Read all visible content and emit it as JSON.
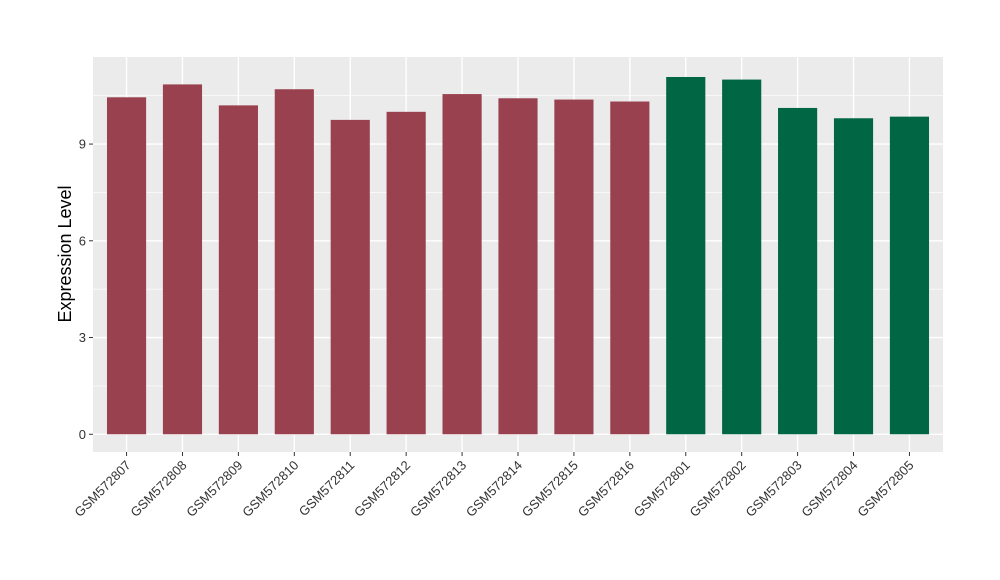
{
  "chart_data": {
    "type": "bar",
    "title": "",
    "xlabel": "",
    "ylabel": "Expression Level",
    "ylim": [
      -0.55,
      11.7
    ],
    "yticks": [
      0,
      3,
      6,
      9
    ],
    "grid": true,
    "legend": "none",
    "categories": [
      "GSM572807",
      "GSM572808",
      "GSM572809",
      "GSM572810",
      "GSM572811",
      "GSM572812",
      "GSM572813",
      "GSM572814",
      "GSM572815",
      "GSM572816",
      "GSM572801",
      "GSM572802",
      "GSM572803",
      "GSM572804",
      "GSM572805"
    ],
    "values": [
      10.45,
      10.85,
      10.2,
      10.7,
      9.75,
      10.0,
      10.55,
      10.42,
      10.38,
      10.32,
      11.08,
      11.0,
      10.12,
      9.8,
      9.85
    ],
    "groups": [
      0,
      0,
      0,
      0,
      0,
      0,
      0,
      0,
      0,
      0,
      1,
      1,
      1,
      1,
      1
    ],
    "colors": {
      "group_0": "#99414f",
      "group_1": "#006644",
      "panel_bg": "#ebebeb",
      "grid": "#ffffff"
    }
  }
}
